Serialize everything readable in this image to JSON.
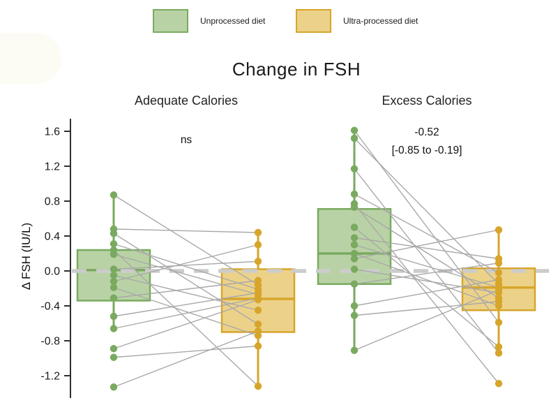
{
  "chart_data": {
    "type": "paired-boxplot",
    "title": "Change in FSH",
    "ylabel": "Δ FSH (IU/L)",
    "ylim": [
      -1.45,
      1.75
    ],
    "ytick_labels": [
      "1.6",
      "1.2",
      "0.8",
      "0.4",
      "0.0",
      "-0.4",
      "-0.8",
      "-1.2"
    ],
    "reference_line_y": 0.0,
    "legend": [
      "Unprocessed diet",
      "Ultra-processed diet"
    ],
    "panels": [
      {
        "subtitle": "Adequate Calories",
        "annotation": {
          "line1": "ns",
          "line2": ""
        },
        "boxes": [
          {
            "group": "Unprocessed diet",
            "q1": -0.34,
            "median": 0.01,
            "q3": 0.24,
            "whisker_low": -0.66,
            "whisker_high": 0.87
          },
          {
            "group": "Ultra-processed diet",
            "q1": -0.7,
            "median": -0.32,
            "q3": 0.02,
            "whisker_low": -1.32,
            "whisker_high": 0.44
          }
        ],
        "pairs": [
          [
            0.87,
            -0.16
          ],
          [
            0.48,
            0.44
          ],
          [
            0.43,
            -0.61
          ],
          [
            0.31,
            -0.21
          ],
          [
            0.24,
            -1.32
          ],
          [
            0.19,
            -0.27
          ],
          [
            0.02,
            0.11
          ],
          [
            -0.05,
            -0.45
          ],
          [
            -0.12,
            0.3
          ],
          [
            -0.19,
            -0.74
          ],
          [
            -0.31,
            -0.11
          ],
          [
            -0.52,
            -0.25
          ],
          [
            -0.66,
            -0.31
          ],
          [
            -0.89,
            -0.33
          ],
          [
            -0.99,
            -0.86
          ],
          [
            -1.33,
            -0.69
          ]
        ]
      },
      {
        "subtitle": "Excess Calories",
        "annotation": {
          "line1": "-0.52",
          "line2": "[-0.85 to -0.19]"
        },
        "boxes": [
          {
            "group": "Unprocessed diet",
            "q1": -0.15,
            "median": 0.2,
            "q3": 0.71,
            "whisker_low": -0.91,
            "whisker_high": 1.61
          },
          {
            "group": "Ultra-processed diet",
            "q1": -0.45,
            "median": -0.19,
            "q3": 0.03,
            "whisker_low": -0.94,
            "whisker_high": 0.47
          }
        ],
        "pairs": [
          [
            1.61,
            -0.59
          ],
          [
            1.52,
            -0.15
          ],
          [
            1.17,
            -0.94
          ],
          [
            0.88,
            -0.02
          ],
          [
            0.77,
            -1.29
          ],
          [
            0.73,
            -0.31
          ],
          [
            0.5,
            -0.87
          ],
          [
            0.38,
            0.14
          ],
          [
            0.3,
            -0.19
          ],
          [
            0.2,
            -0.4
          ],
          [
            0.14,
            0.47
          ],
          [
            0.02,
            -0.25
          ],
          [
            -0.15,
            0.09
          ],
          [
            -0.4,
            -0.1
          ],
          [
            -0.51,
            -0.35
          ],
          [
            -0.91,
            -0.22
          ]
        ]
      }
    ]
  },
  "colors": {
    "green_fill": "#b9d2a5",
    "green_stroke": "#79aa5f",
    "gold_fill": "#ecd289",
    "gold_stroke": "#d7a52a",
    "pair_line": "#a9a9a9",
    "zero_line": "#cccccc",
    "axis": "#2e2e2e",
    "text": "#1a1a1a"
  }
}
